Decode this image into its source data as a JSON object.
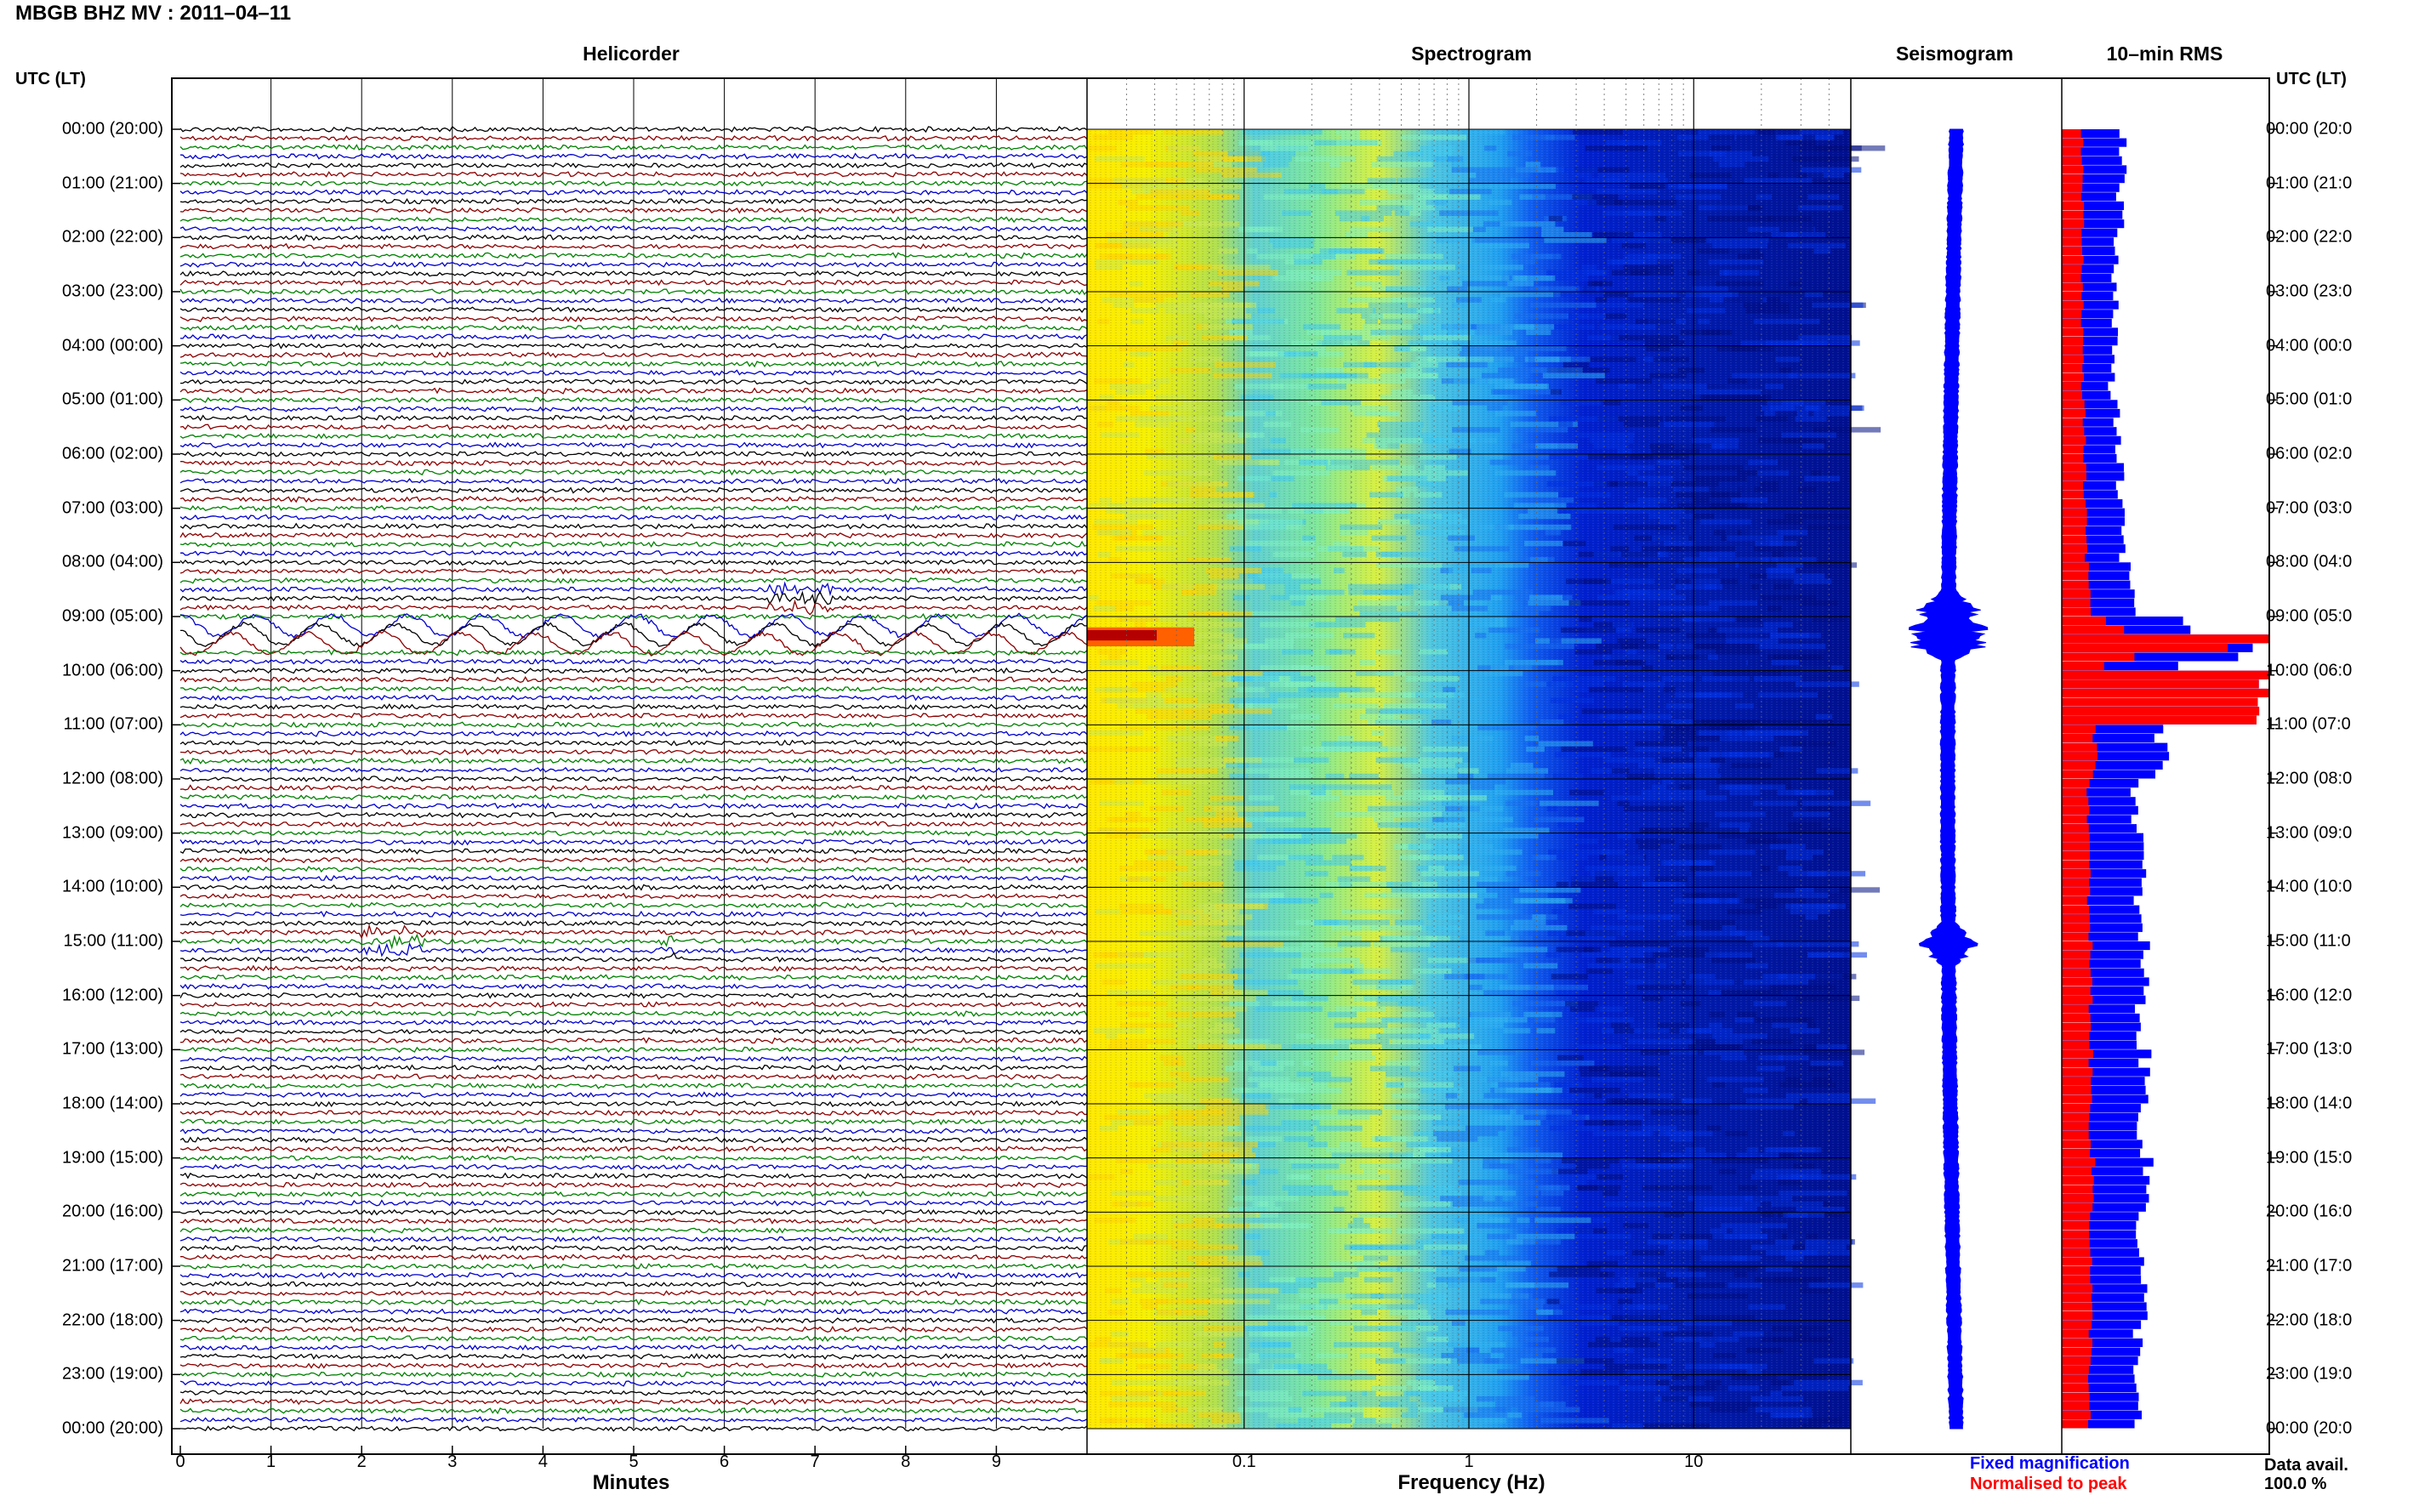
{
  "title": "MBGB BHZ MV : 2011–04–11",
  "panels": {
    "helicorder": "Helicorder",
    "spectrogram": "Spectrogram",
    "seismogram": "Seismogram",
    "rms": "10–min RMS"
  },
  "utc_header": "UTC (LT)",
  "time_labels_left": [
    "00:00 (20:00)",
    "01:00 (21:00)",
    "02:00 (22:00)",
    "03:00 (23:00)",
    "04:00 (00:00)",
    "05:00 (01:00)",
    "06:00 (02:00)",
    "07:00 (03:00)",
    "08:00 (04:00)",
    "09:00 (05:00)",
    "10:00 (06:00)",
    "11:00 (07:00)",
    "12:00 (08:00)",
    "13:00 (09:00)",
    "14:00 (10:00)",
    "15:00 (11:00)",
    "16:00 (12:00)",
    "17:00 (13:00)",
    "18:00 (14:00)",
    "19:00 (15:00)",
    "20:00 (16:00)",
    "21:00 (17:00)",
    "22:00 (18:00)",
    "23:00 (19:00)",
    "00:00 (20:00)"
  ],
  "time_labels_right": [
    "00:00 (20:0",
    "01:00 (21:0",
    "02:00 (22:0",
    "03:00 (23:0",
    "04:00 (00:0",
    "05:00 (01:0",
    "06:00 (02:0",
    "07:00 (03:0",
    "08:00 (04:0",
    "09:00 (05:0",
    "10:00 (06:0",
    "11:00 (07:0",
    "12:00 (08:0",
    "13:00 (09:0",
    "14:00 (10:0",
    "15:00 (11:0",
    "16:00 (12:0",
    "17:00 (13:0",
    "18:00 (14:0",
    "19:00 (15:0",
    "20:00 (16:0",
    "21:00 (17:0",
    "22:00 (18:0",
    "23:00 (19:0",
    "00:00 (20:0"
  ],
  "helicorder_x": {
    "label": "Minutes",
    "ticks": [
      "0",
      "1",
      "2",
      "3",
      "4",
      "5",
      "6",
      "7",
      "8",
      "9"
    ]
  },
  "spectrogram_x": {
    "label": "Frequency (Hz)",
    "ticks": [
      "0.1",
      "1",
      "10"
    ],
    "scale": "log"
  },
  "legend": {
    "fixed": "Fixed magnification",
    "normalised": "Normalised to peak",
    "data_avail_label": "Data avail.",
    "data_avail_value": "100.0 %"
  },
  "colors": {
    "trace_colors": [
      "#000000",
      "#8b0000",
      "#008000",
      "#0000cc"
    ],
    "fixed_rms": "#0000ff",
    "normalised_rms": "#ff0000",
    "spectro_cmap": [
      "#00008b",
      "#0000ff",
      "#1e90ff",
      "#00ffff",
      "#ffff00",
      "#ff8c00",
      "#b40000"
    ]
  },
  "chart_data": {
    "type": "heatmap",
    "title": "MBGB BHZ MV : 2011–04–11",
    "helicorder": {
      "type": "line",
      "xlabel": "Minutes",
      "xlim": [
        0,
        10
      ],
      "hours_utc": 24,
      "traces_per_hour": 6,
      "events": [
        {
          "hour_utc": 9.33,
          "minute_range": [
            0,
            10
          ],
          "type": "long-period oscillation"
        },
        {
          "hour_utc": 8.7,
          "minute_range": [
            6.5,
            7.2
          ],
          "type": "small burst"
        },
        {
          "hour_utc": 15.0,
          "minute_range": [
            2.0,
            2.7
          ],
          "type": "burst"
        },
        {
          "hour_utc": 15.1,
          "minute_range": [
            5.3,
            5.5
          ],
          "type": "spike"
        }
      ]
    },
    "spectrogram": {
      "type": "heatmap",
      "xlabel": "Frequency (Hz)",
      "xscale": "log",
      "xlim": [
        0.02,
        50
      ],
      "peak": {
        "hour_utc": [
          9.2,
          9.55
        ],
        "freq_hz": [
          0.02,
          0.06
        ]
      }
    },
    "seismogram": {
      "type": "line",
      "peak_hours_utc": [
        8.9,
        9.4,
        15.05
      ]
    },
    "rms": {
      "type": "bar",
      "series": [
        {
          "name": "Fixed magnification",
          "hourly_values": [
            0.3,
            0.28,
            0.26,
            0.26,
            0.24,
            0.27,
            0.28,
            0.3,
            0.33,
            0.55,
            1.0,
            0.48,
            0.36,
            0.38,
            0.37,
            0.4,
            0.38,
            0.4,
            0.39,
            0.41,
            0.38,
            0.39,
            0.37,
            0.36
          ]
        },
        {
          "name": "Normalised to peak",
          "hourly_values": [
            0.1,
            0.1,
            0.1,
            0.1,
            0.1,
            0.11,
            0.11,
            0.12,
            0.13,
            0.2,
            1.0,
            0.16,
            0.13,
            0.13,
            0.13,
            0.14,
            0.14,
            0.14,
            0.14,
            0.15,
            0.14,
            0.14,
            0.14,
            0.13
          ]
        }
      ]
    }
  }
}
